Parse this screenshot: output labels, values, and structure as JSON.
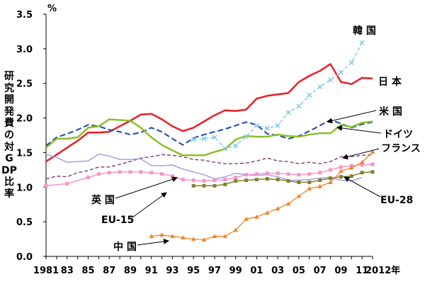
{
  "chart_data": {
    "type": "line",
    "unit": "%",
    "ylabel": "研究開発費の対GDP比率",
    "ylim": [
      0,
      3.5
    ],
    "yticks": [
      "0.0",
      "0.5",
      "1.0",
      "1.5",
      "2.0",
      "2.5",
      "3.0",
      "3.5"
    ],
    "xlim": [
      1981,
      2012
    ],
    "xticks": [
      {
        "year": 1981,
        "label": "1981"
      },
      {
        "year": 1983,
        "label": "83"
      },
      {
        "year": 1985,
        "label": "85"
      },
      {
        "year": 1987,
        "label": "87"
      },
      {
        "year": 1989,
        "label": "89"
      },
      {
        "year": 1991,
        "label": "91"
      },
      {
        "year": 1993,
        "label": "93"
      },
      {
        "year": 1995,
        "label": "95"
      },
      {
        "year": 1997,
        "label": "97"
      },
      {
        "year": 1999,
        "label": "99"
      },
      {
        "year": 2001,
        "label": "01"
      },
      {
        "year": 2003,
        "label": "03"
      },
      {
        "year": 2005,
        "label": "05"
      },
      {
        "year": 2007,
        "label": "07"
      },
      {
        "year": 2009,
        "label": "09"
      },
      {
        "year": 2011,
        "label": "11"
      },
      {
        "year": 2012,
        "label": "2012年"
      }
    ],
    "grid": false,
    "series": [
      {
        "name": "日 本",
        "color": "#ee1c25",
        "style": "solid",
        "width": 2.5,
        "marker": "none",
        "x": [
          1981,
          1982,
          1983,
          1984,
          1985,
          1986,
          1987,
          1988,
          1989,
          1990,
          1991,
          1992,
          1993,
          1994,
          1995,
          1996,
          1997,
          1998,
          1999,
          2000,
          2001,
          2002,
          2003,
          2004,
          2005,
          2006,
          2007,
          2008,
          2009,
          2010,
          2011,
          2012
        ],
        "y": [
          1.37,
          1.47,
          1.57,
          1.67,
          1.79,
          1.79,
          1.8,
          1.88,
          1.96,
          2.05,
          2.06,
          1.98,
          1.88,
          1.81,
          1.86,
          1.95,
          2.04,
          2.11,
          2.1,
          2.12,
          2.28,
          2.32,
          2.34,
          2.36,
          2.52,
          2.61,
          2.68,
          2.78,
          2.52,
          2.49,
          2.58,
          2.57
        ]
      },
      {
        "name": "米 国",
        "color": "#1e46b4",
        "style": "dash",
        "width": 2,
        "marker": "none",
        "x": [
          1981,
          1982,
          1983,
          1984,
          1985,
          1986,
          1987,
          1988,
          1989,
          1990,
          1991,
          1992,
          1993,
          1994,
          1995,
          1996,
          1997,
          1998,
          1999,
          2000,
          2001,
          2002,
          2003,
          2004,
          2005,
          2006,
          2007,
          2008,
          2009,
          2010,
          2011,
          2012
        ],
        "y": [
          1.6,
          1.72,
          1.77,
          1.83,
          1.9,
          1.88,
          1.83,
          1.8,
          1.76,
          1.79,
          1.86,
          1.8,
          1.7,
          1.61,
          1.71,
          1.76,
          1.8,
          1.84,
          1.89,
          1.94,
          1.9,
          1.77,
          1.75,
          1.7,
          1.74,
          1.81,
          1.89,
          1.97,
          1.92,
          1.86,
          1.91,
          1.94
        ]
      },
      {
        "name": "ドイツ",
        "color": "#8cbe28",
        "style": "solid",
        "width": 2.5,
        "marker": "none",
        "x": [
          1981,
          1982,
          1983,
          1984,
          1985,
          1986,
          1987,
          1988,
          1989,
          1990,
          1991,
          1992,
          1993,
          1994,
          1995,
          1996,
          1997,
          1998,
          1999,
          2000,
          2001,
          2002,
          2003,
          2004,
          2005,
          2006,
          2007,
          2008,
          2009,
          2010,
          2011,
          2012
        ],
        "y": [
          1.57,
          1.7,
          1.7,
          1.72,
          1.86,
          1.88,
          1.98,
          1.97,
          1.96,
          1.86,
          1.72,
          1.61,
          1.53,
          1.46,
          1.46,
          1.46,
          1.51,
          1.55,
          1.69,
          1.74,
          1.73,
          1.73,
          1.76,
          1.74,
          1.73,
          1.76,
          1.78,
          1.78,
          1.9,
          1.87,
          1.93,
          1.95
        ]
      },
      {
        "name": "韓 国",
        "color": "#78c8eb",
        "style": "dash",
        "width": 1.3,
        "marker": "x",
        "x": [
          1995,
          1996,
          1997,
          1998,
          1999,
          2000,
          2001,
          2002,
          2003,
          2004,
          2005,
          2006,
          2007,
          2008,
          2009,
          2010,
          2011
        ],
        "y": [
          1.69,
          1.7,
          1.72,
          1.56,
          1.6,
          1.73,
          1.89,
          1.85,
          1.89,
          2.08,
          2.17,
          2.33,
          2.45,
          2.55,
          2.66,
          2.8,
          3.09
        ]
      },
      {
        "name": "フランス",
        "color": "#7a2d6e",
        "style": "dash",
        "width": 1.3,
        "marker": "none",
        "x": [
          1981,
          1982,
          1983,
          1984,
          1985,
          1986,
          1987,
          1988,
          1989,
          1990,
          1991,
          1992,
          1993,
          1994,
          1995,
          1996,
          1997,
          1998,
          1999,
          2000,
          2001,
          2002,
          2003,
          2004,
          2005,
          2006,
          2007,
          2008,
          2009,
          2010,
          2011,
          2012
        ],
        "y": [
          1.12,
          1.16,
          1.15,
          1.21,
          1.24,
          1.29,
          1.29,
          1.33,
          1.37,
          1.42,
          1.44,
          1.47,
          1.46,
          1.44,
          1.4,
          1.39,
          1.36,
          1.34,
          1.34,
          1.35,
          1.38,
          1.42,
          1.38,
          1.37,
          1.34,
          1.36,
          1.34,
          1.37,
          1.44,
          1.44,
          1.46,
          1.47
        ]
      },
      {
        "name": "英 国",
        "color": "#a0a0e6",
        "style": "solid",
        "width": 1.5,
        "marker": "none",
        "x": [
          1981,
          1982,
          1983,
          1984,
          1985,
          1986,
          1987,
          1988,
          1989,
          1990,
          1991,
          1992,
          1993,
          1994,
          1995,
          1996,
          1997,
          1998,
          1999,
          2000,
          2001,
          2002,
          2003,
          2004,
          2005,
          2006,
          2007,
          2008,
          2009,
          2010,
          2011
        ],
        "y": [
          1.47,
          1.43,
          1.36,
          1.37,
          1.38,
          1.48,
          1.45,
          1.4,
          1.4,
          1.41,
          1.31,
          1.31,
          1.32,
          1.26,
          1.22,
          1.18,
          1.12,
          1.15,
          1.2,
          1.18,
          1.17,
          1.18,
          1.15,
          1.1,
          1.1,
          1.11,
          1.13,
          1.14,
          1.1,
          1.09,
          1.14
        ]
      },
      {
        "name": "EU-15",
        "color": "#f596c8",
        "style": "solid",
        "width": 1.5,
        "marker": "square",
        "x": [
          1981,
          1983,
          1985,
          1986,
          1987,
          1988,
          1989,
          1990,
          1991,
          1992,
          1993,
          1994,
          1995,
          1996,
          1997,
          1998,
          1999,
          2000,
          2001,
          2002,
          2003,
          2004,
          2005,
          2006,
          2007,
          2008,
          2009,
          2010,
          2011,
          2012
        ],
        "y": [
          1.02,
          1.05,
          1.14,
          1.19,
          1.21,
          1.22,
          1.22,
          1.22,
          1.21,
          1.19,
          1.16,
          1.11,
          1.1,
          1.09,
          1.1,
          1.11,
          1.14,
          1.18,
          1.19,
          1.2,
          1.2,
          1.19,
          1.18,
          1.19,
          1.21,
          1.25,
          1.29,
          1.31,
          1.32,
          1.33
        ]
      },
      {
        "name": "EU-28",
        "color": "#82822d",
        "style": "solid",
        "width": 1.5,
        "marker": "square",
        "x": [
          1995,
          1996,
          1997,
          1998,
          1999,
          2000,
          2001,
          2002,
          2003,
          2004,
          2005,
          2006,
          2007,
          2008,
          2009,
          2010,
          2011,
          2012
        ],
        "y": [
          1.02,
          1.02,
          1.02,
          1.04,
          1.09,
          1.1,
          1.11,
          1.12,
          1.11,
          1.09,
          1.07,
          1.07,
          1.1,
          1.13,
          1.15,
          1.16,
          1.21,
          1.22
        ]
      },
      {
        "name": "中 国",
        "color": "#f08228",
        "style": "solid",
        "width": 1.3,
        "marker": "triangle",
        "x": [
          1991,
          1992,
          1993,
          1994,
          1995,
          1996,
          1997,
          1998,
          1999,
          2000,
          2001,
          2002,
          2003,
          2004,
          2005,
          2006,
          2007,
          2008,
          2009,
          2010,
          2011,
          2012
        ],
        "y": [
          0.29,
          0.31,
          0.29,
          0.27,
          0.25,
          0.24,
          0.29,
          0.29,
          0.38,
          0.54,
          0.57,
          0.63,
          0.69,
          0.76,
          0.87,
          0.98,
          1.01,
          1.07,
          1.23,
          1.28,
          1.36,
          1.51
        ]
      }
    ],
    "labels": [
      {
        "text": "日 本",
        "series": "日 本"
      },
      {
        "text": "韓 国",
        "series": "韓 国"
      },
      {
        "text": "米 国",
        "series": "米 国"
      },
      {
        "text": "ドイツ",
        "series": "ドイツ"
      },
      {
        "text": "フランス",
        "series": "フランス"
      },
      {
        "text": "英 国",
        "series": "英 国"
      },
      {
        "text": "EU-15",
        "series": "EU-15"
      },
      {
        "text": "EU-28",
        "series": "EU-28"
      },
      {
        "text": "中 国",
        "series": "中 国"
      }
    ]
  }
}
